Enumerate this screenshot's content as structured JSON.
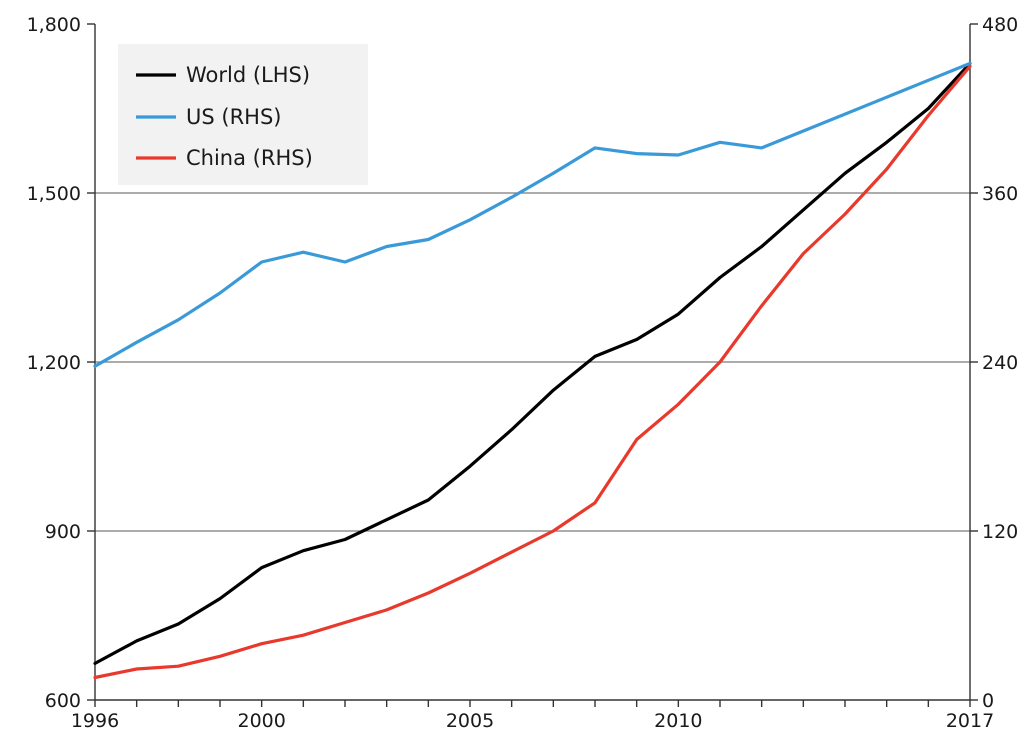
{
  "chart_data": {
    "type": "line",
    "title": "",
    "xlabel": "",
    "ylabel_left": "",
    "ylabel_right": "",
    "x": [
      1996,
      1997,
      1998,
      1999,
      2000,
      2001,
      2002,
      2003,
      2004,
      2005,
      2006,
      2007,
      2008,
      2009,
      2010,
      2011,
      2012,
      2013,
      2014,
      2015,
      2016,
      2017
    ],
    "xlim": [
      1996,
      2017
    ],
    "x_ticks": [
      "1996",
      "2000",
      "2005",
      "2010",
      "2017"
    ],
    "x_tick_values": [
      1996,
      2000,
      2005,
      2010,
      2017
    ],
    "ylim_left": [
      600,
      1800
    ],
    "y_ticks_left": [
      "600",
      "900",
      "1,200",
      "1,500",
      "1,800"
    ],
    "y_tick_values_left": [
      600,
      900,
      1200,
      1500,
      1800
    ],
    "ylim_right": [
      0,
      480
    ],
    "y_ticks_right": [
      "0",
      "120",
      "240",
      "360",
      "480"
    ],
    "y_tick_values_right": [
      0,
      120,
      240,
      360,
      480
    ],
    "grid": "horizontal",
    "legend_position": "top-left",
    "series": [
      {
        "name": "World (LHS)",
        "axis": "left",
        "color": "#000000",
        "values": [
          665,
          705,
          735,
          780,
          835,
          865,
          885,
          920,
          955,
          1015,
          1080,
          1150,
          1210,
          1240,
          1285,
          1350,
          1405,
          1470,
          1535,
          1590,
          1650,
          1730
        ]
      },
      {
        "name": "US (RHS)",
        "axis": "right",
        "color": "#3a9ad9",
        "values": [
          237,
          254,
          270,
          289,
          311,
          318,
          311,
          322,
          327,
          341,
          357,
          374,
          392,
          388,
          387,
          396,
          392,
          404,
          416,
          428,
          440,
          452
        ]
      },
      {
        "name": "China (RHS)",
        "axis": "right",
        "color": "#e8392c",
        "values": [
          16,
          22,
          24,
          31,
          40,
          46,
          55,
          64,
          76,
          90,
          105,
          120,
          140,
          185,
          210,
          240,
          280,
          317,
          345,
          377,
          415,
          450
        ]
      }
    ]
  }
}
